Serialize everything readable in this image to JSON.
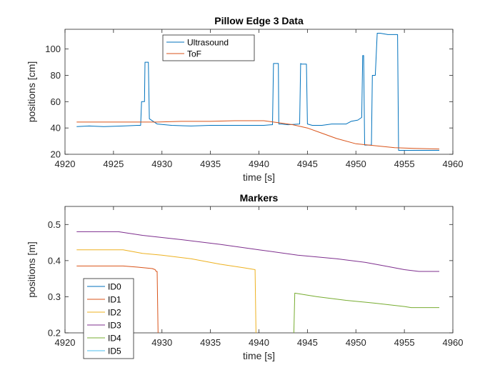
{
  "chart_data": [
    {
      "type": "line",
      "title": "Pillow Edge 3 Data",
      "xlabel": "time [s]",
      "ylabel": "positions [cm]",
      "xlim": [
        4920,
        4960
      ],
      "ylim": [
        20,
        115
      ],
      "xticks": [
        4920,
        4925,
        4930,
        4935,
        4940,
        4945,
        4950,
        4955,
        4960
      ],
      "yticks": [
        20,
        40,
        60,
        80,
        100
      ],
      "legend": "top-center",
      "series": [
        {
          "name": "Ultrasound",
          "color": "#0072bd",
          "x": [
            4921.2,
            4922.5,
            4924,
            4926,
            4927.5,
            4927.8,
            4927.9,
            4928.2,
            4928.25,
            4928.6,
            4928.7,
            4929.5,
            4931,
            4933,
            4935,
            4937,
            4939,
            4940.5,
            4941.3,
            4941.4,
            4941.5,
            4942,
            4942.05,
            4942.3,
            4943,
            4944.2,
            4944.3,
            4944.4,
            4944.9,
            4945,
            4945.5,
            4946.5,
            4947.5,
            4948.5,
            4949,
            4949.5,
            4950.2,
            4950.6,
            4950.7,
            4950.8,
            4950.9,
            4951,
            4951.6,
            4951.7,
            4952,
            4952.2,
            4952.5,
            4953.3,
            4953.5,
            4954.1,
            4954.3,
            4954.4,
            4955,
            4956,
            4957,
            4958.6
          ],
          "y": [
            41,
            41.5,
            41,
            41.5,
            42,
            42,
            60,
            60,
            90,
            90,
            47,
            43,
            42,
            41.5,
            42,
            42,
            42,
            42,
            42.5,
            42.5,
            89,
            89,
            43,
            43,
            42.5,
            43,
            89,
            88.5,
            88.5,
            43,
            42,
            42,
            43,
            43,
            43,
            45,
            46,
            48,
            95,
            95,
            27,
            27,
            27,
            80,
            80,
            112,
            112,
            111,
            111,
            111,
            111,
            23,
            23,
            23,
            23,
            23
          ]
        },
        {
          "name": "ToF",
          "color": "#d95319",
          "x": [
            4921.2,
            4924,
            4927,
            4929.5,
            4932,
            4935,
            4937.5,
            4940.5,
            4942,
            4943.5,
            4945,
            4946.5,
            4948,
            4950,
            4952,
            4954,
            4956,
            4958.6
          ],
          "y": [
            44.5,
            44.5,
            44.5,
            44.5,
            45,
            45,
            45.5,
            45.5,
            44,
            42.5,
            40,
            36,
            32,
            28,
            26.5,
            25,
            24.5,
            24
          ]
        }
      ]
    },
    {
      "type": "line",
      "title": "Markers",
      "xlabel": "time [s]",
      "ylabel": "positions [m]",
      "xlim": [
        4920,
        4960
      ],
      "ylim": [
        0.2,
        0.55
      ],
      "xticks": [
        4920,
        4925,
        4930,
        4935,
        4940,
        4945,
        4950,
        4955,
        4960
      ],
      "yticks": [
        0.2,
        0.3,
        0.4,
        0.5
      ],
      "legend": "bottom-left",
      "series": [
        {
          "name": "ID0",
          "color": "#0072bd",
          "x": [],
          "y": []
        },
        {
          "name": "ID1",
          "color": "#d95319",
          "x": [
            4921.2,
            4924,
            4926,
            4927.5,
            4929,
            4929.3,
            4929.4,
            4929.5,
            4929.6
          ],
          "y": [
            0.385,
            0.385,
            0.385,
            0.382,
            0.378,
            0.375,
            0.37,
            0.37,
            0.2
          ]
        },
        {
          "name": "ID2",
          "color": "#edb120",
          "x": [
            4921.2,
            4923,
            4926,
            4928,
            4930,
            4933,
            4936,
            4938.5,
            4939.6,
            4939.7
          ],
          "y": [
            0.43,
            0.43,
            0.43,
            0.42,
            0.415,
            0.405,
            0.39,
            0.38,
            0.375,
            0.2
          ]
        },
        {
          "name": "ID3",
          "color": "#7e2f8e",
          "x": [
            4921.2,
            4923,
            4925.5,
            4928,
            4932,
            4936,
            4940,
            4944,
            4948,
            4951,
            4953,
            4955,
            4956.5,
            4958.6
          ],
          "y": [
            0.48,
            0.48,
            0.48,
            0.47,
            0.458,
            0.445,
            0.43,
            0.415,
            0.405,
            0.395,
            0.385,
            0.375,
            0.37,
            0.37
          ]
        },
        {
          "name": "ID4",
          "color": "#77ac30",
          "x": [
            4943.6,
            4943.7,
            4946,
            4949,
            4952,
            4955,
            4955.7,
            4958.6
          ],
          "y": [
            0.2,
            0.31,
            0.3,
            0.29,
            0.282,
            0.273,
            0.27,
            0.27
          ]
        },
        {
          "name": "ID5",
          "color": "#4dbeee",
          "x": [],
          "y": []
        }
      ]
    }
  ]
}
